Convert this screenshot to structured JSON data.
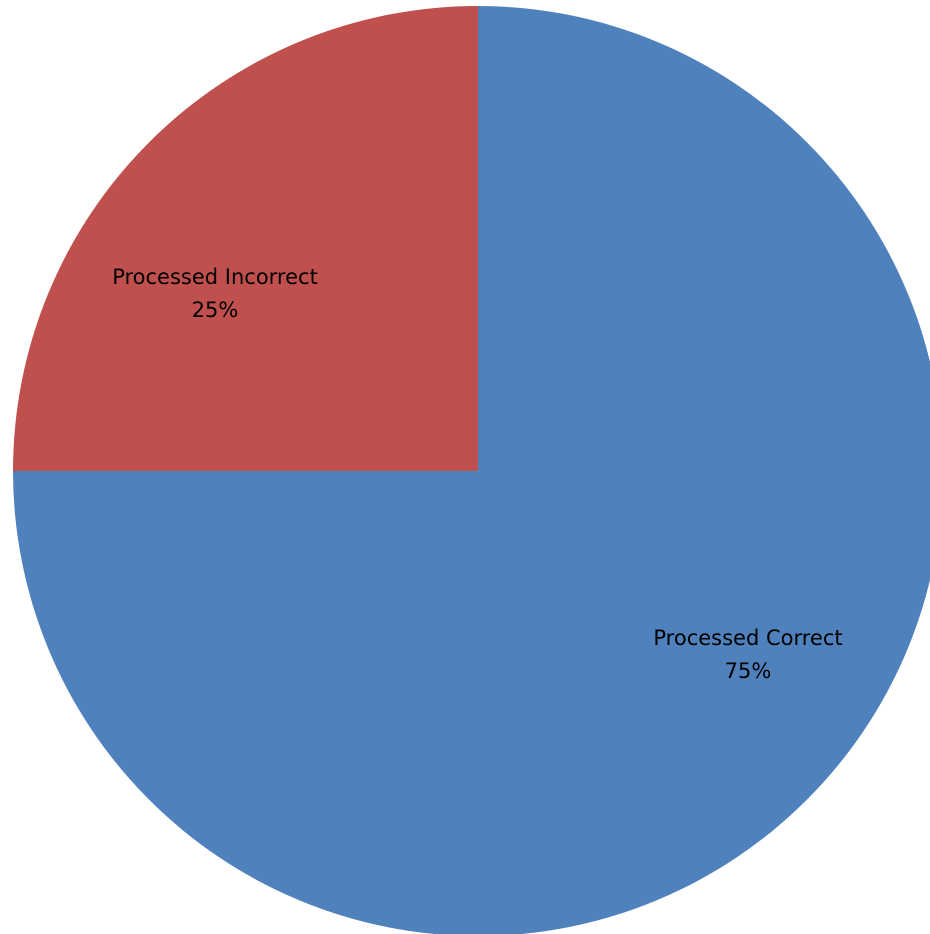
{
  "chart_data": {
    "type": "pie",
    "title": "",
    "start_angle_deg": 0,
    "direction": "clockwise",
    "slices": [
      {
        "label": "Processed Correct",
        "value": 75,
        "value_label": "75%",
        "color": "#4f81bd"
      },
      {
        "label": "Processed Incorrect",
        "value": 25,
        "value_label": "25%",
        "color": "#c0504d"
      }
    ],
    "legend": "none"
  }
}
